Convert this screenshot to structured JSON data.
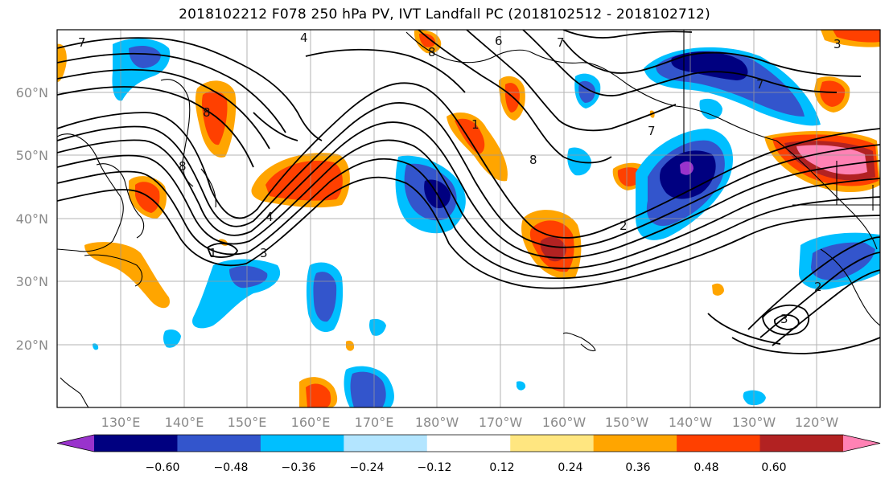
{
  "title": "2018102212 F078 250 hPa PV, IVT Landfall PC (2018102512 - 2018102712)",
  "map": {
    "lat_labels": [
      "60°N",
      "50°N",
      "40°N",
      "30°N",
      "20°N"
    ],
    "lon_labels": [
      "130°E",
      "140°E",
      "150°E",
      "160°E",
      "170°E",
      "180°W",
      "170°W",
      "160°W",
      "150°W",
      "140°W",
      "130°W",
      "120°W"
    ],
    "contour_labels": [
      "7",
      "4",
      "6",
      "7",
      "8",
      "8",
      "8",
      "7",
      "7",
      "8",
      "2",
      "4",
      "3",
      "1",
      "3",
      "2",
      "3",
      "1"
    ],
    "gridlines": true
  },
  "colorbar": {
    "tick_labels": [
      "−0.60",
      "−0.48",
      "−0.36",
      "−0.24",
      "−0.12",
      "0.12",
      "0.24",
      "0.36",
      "0.48",
      "0.60"
    ],
    "colors": [
      "#9933cc",
      "#000080",
      "#3355cc",
      "#00bfff",
      "#b3e5ff",
      "#ffffff",
      "#ffe680",
      "#ffa500",
      "#ff4000",
      "#b22222",
      "#ff82b4"
    ]
  }
}
